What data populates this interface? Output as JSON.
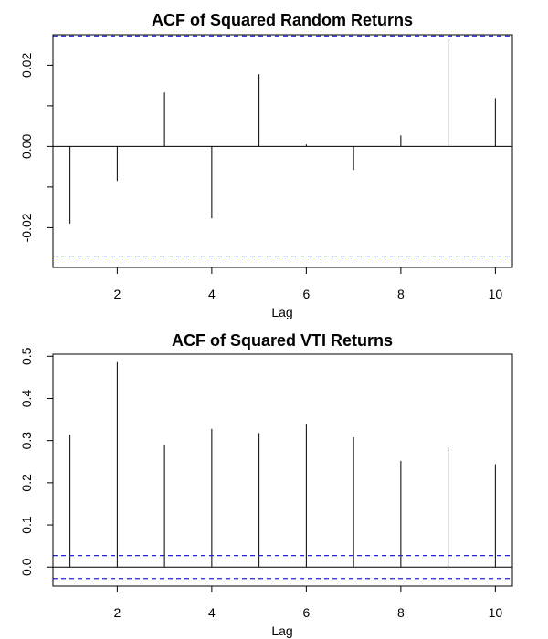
{
  "chart_data": [
    {
      "type": "bar",
      "title": "ACF of Squared Random Returns",
      "xlabel": "Lag",
      "ylabel": "",
      "x": [
        1,
        2,
        3,
        4,
        5,
        6,
        7,
        8,
        9,
        10
      ],
      "values": [
        -0.019,
        -0.0085,
        0.0133,
        -0.0177,
        0.0178,
        0.0005,
        -0.0058,
        0.0027,
        0.0264,
        0.0119
      ],
      "confidence_bound": 0.0272,
      "xlim": [
        0.64,
        10.36
      ],
      "ylim": [
        -0.0298,
        0.0275
      ],
      "xticks": [
        2,
        4,
        6,
        8,
        10
      ],
      "xtick_labels": [
        "2",
        "4",
        "6",
        "8",
        "10"
      ],
      "yticks": [
        -0.02,
        0.0,
        0.02
      ],
      "ytick_labels": [
        "-0.02",
        "0.00",
        "0.02"
      ],
      "minor_yticks": [
        -0.01,
        0.01
      ],
      "grid": false,
      "colors": {
        "spike": "#000000",
        "bound": "#2222dd",
        "zero_line": "#000000"
      }
    },
    {
      "type": "bar",
      "title": "ACF of Squared VTI Returns",
      "xlabel": "Lag",
      "ylabel": "",
      "x": [
        1,
        2,
        3,
        4,
        5,
        6,
        7,
        8,
        9,
        10
      ],
      "values": [
        0.314,
        0.486,
        0.289,
        0.328,
        0.318,
        0.34,
        0.308,
        0.252,
        0.284,
        0.244
      ],
      "confidence_bound": 0.0272,
      "xlim": [
        0.64,
        10.36
      ],
      "ylim": [
        -0.045,
        0.505
      ],
      "xticks": [
        2,
        4,
        6,
        8,
        10
      ],
      "xtick_labels": [
        "2",
        "4",
        "6",
        "8",
        "10"
      ],
      "yticks": [
        0.0,
        0.1,
        0.2,
        0.3,
        0.4,
        0.5
      ],
      "ytick_labels": [
        "0.0",
        "0.1",
        "0.2",
        "0.3",
        "0.4",
        "0.5"
      ],
      "minor_yticks": [],
      "grid": false,
      "colors": {
        "spike": "#000000",
        "bound": "#2222dd",
        "zero_line": "#000000"
      }
    }
  ]
}
